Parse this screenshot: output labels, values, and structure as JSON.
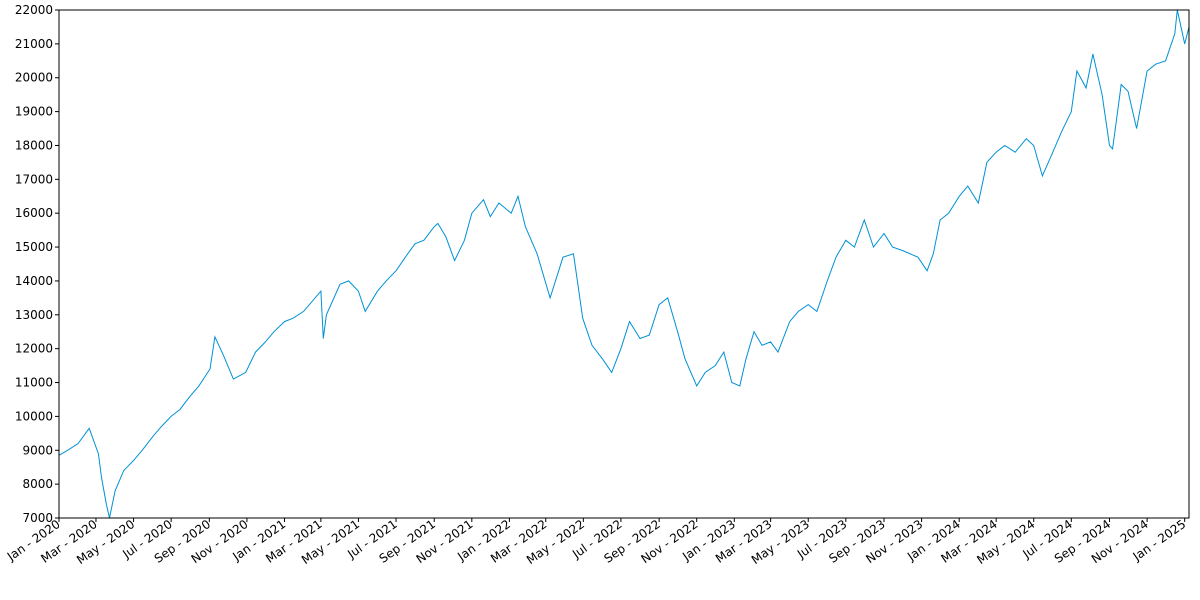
{
  "chart_data": {
    "type": "line",
    "title": "",
    "xlabel": "",
    "ylabel": "",
    "grid": false,
    "line_color": "#0091d5",
    "x_range": [
      "2020-01-01",
      "2025-01-08"
    ],
    "ylim": [
      7000,
      22000
    ],
    "y_ticks": [
      7000,
      8000,
      9000,
      10000,
      11000,
      12000,
      13000,
      14000,
      15000,
      16000,
      17000,
      18000,
      19000,
      20000,
      21000,
      22000
    ],
    "x_ticks": [
      {
        "date": "2020-01-01",
        "label": "Jan - 2020"
      },
      {
        "date": "2020-03-01",
        "label": "Mar - 2020"
      },
      {
        "date": "2020-05-01",
        "label": "May - 2020"
      },
      {
        "date": "2020-07-01",
        "label": "Jul - 2020"
      },
      {
        "date": "2020-09-01",
        "label": "Sep - 2020"
      },
      {
        "date": "2020-11-01",
        "label": "Nov - 2020"
      },
      {
        "date": "2021-01-01",
        "label": "Jan - 2021"
      },
      {
        "date": "2021-03-01",
        "label": "Mar - 2021"
      },
      {
        "date": "2021-05-01",
        "label": "May - 2021"
      },
      {
        "date": "2021-07-01",
        "label": "Jul - 2021"
      },
      {
        "date": "2021-09-01",
        "label": "Sep - 2021"
      },
      {
        "date": "2021-11-01",
        "label": "Nov - 2021"
      },
      {
        "date": "2022-01-01",
        "label": "Jan - 2022"
      },
      {
        "date": "2022-03-01",
        "label": "Mar - 2022"
      },
      {
        "date": "2022-05-01",
        "label": "May - 2022"
      },
      {
        "date": "2022-07-01",
        "label": "Jul - 2022"
      },
      {
        "date": "2022-09-01",
        "label": "Sep - 2022"
      },
      {
        "date": "2022-11-01",
        "label": "Nov - 2022"
      },
      {
        "date": "2023-01-01",
        "label": "Jan - 2023"
      },
      {
        "date": "2023-03-01",
        "label": "Mar - 2023"
      },
      {
        "date": "2023-05-01",
        "label": "May - 2023"
      },
      {
        "date": "2023-07-01",
        "label": "Jul - 2023"
      },
      {
        "date": "2023-09-01",
        "label": "Sep - 2023"
      },
      {
        "date": "2023-11-01",
        "label": "Nov - 2023"
      },
      {
        "date": "2024-01-01",
        "label": "Jan - 2024"
      },
      {
        "date": "2024-03-01",
        "label": "Mar - 2024"
      },
      {
        "date": "2024-05-01",
        "label": "May - 2024"
      },
      {
        "date": "2024-07-01",
        "label": "Jul - 2024"
      },
      {
        "date": "2024-09-01",
        "label": "Sep - 2024"
      },
      {
        "date": "2024-11-01",
        "label": "Nov - 2024"
      },
      {
        "date": "2025-01-01",
        "label": "Jan - 2025"
      }
    ],
    "series": [
      {
        "x": [
          "2020-01-01",
          "2020-01-15",
          "2020-02-01",
          "2020-02-19",
          "2020-03-05",
          "2020-03-10",
          "2020-03-18",
          "2020-03-23",
          "2020-04-01",
          "2020-04-15",
          "2020-05-01",
          "2020-05-15",
          "2020-06-01",
          "2020-06-15",
          "2020-07-01",
          "2020-07-15",
          "2020-08-01",
          "2020-08-15",
          "2020-09-02",
          "2020-09-10",
          "2020-09-24",
          "2020-10-10",
          "2020-10-30",
          "2020-11-15",
          "2020-12-01",
          "2020-12-15",
          "2021-01-01",
          "2021-01-15",
          "2021-02-01",
          "2021-02-15",
          "2021-03-01",
          "2021-03-05",
          "2021-03-10",
          "2021-04-01",
          "2021-04-15",
          "2021-05-01",
          "2021-05-12",
          "2021-06-01",
          "2021-06-15",
          "2021-07-01",
          "2021-07-20",
          "2021-08-01",
          "2021-08-15",
          "2021-09-01",
          "2021-09-07",
          "2021-09-20",
          "2021-10-04",
          "2021-10-20",
          "2021-11-01",
          "2021-11-20",
          "2021-12-01",
          "2021-12-15",
          "2022-01-04",
          "2022-01-15",
          "2022-01-27",
          "2022-02-15",
          "2022-03-08",
          "2022-03-29",
          "2022-04-15",
          "2022-04-30",
          "2022-05-15",
          "2022-06-01",
          "2022-06-16",
          "2022-07-01",
          "2022-07-15",
          "2022-08-01",
          "2022-08-16",
          "2022-09-01",
          "2022-09-15",
          "2022-10-01",
          "2022-10-13",
          "2022-11-01",
          "2022-11-15",
          "2022-12-01",
          "2022-12-15",
          "2022-12-28",
          "2023-01-10",
          "2023-01-20",
          "2023-02-02",
          "2023-02-15",
          "2023-03-01",
          "2023-03-13",
          "2023-04-01",
          "2023-04-15",
          "2023-05-01",
          "2023-05-15",
          "2023-06-01",
          "2023-06-15",
          "2023-07-01",
          "2023-07-15",
          "2023-07-31",
          "2023-08-15",
          "2023-09-01",
          "2023-09-15",
          "2023-10-01",
          "2023-10-26",
          "2023-11-10",
          "2023-11-20",
          "2023-12-01",
          "2023-12-15",
          "2024-01-01",
          "2024-01-15",
          "2024-02-01",
          "2024-02-15",
          "2024-03-01",
          "2024-03-15",
          "2024-04-01",
          "2024-04-19",
          "2024-05-01",
          "2024-05-15",
          "2024-06-01",
          "2024-06-15",
          "2024-07-01",
          "2024-07-10",
          "2024-07-25",
          "2024-08-05",
          "2024-08-20",
          "2024-09-01",
          "2024-09-06",
          "2024-09-20",
          "2024-10-01",
          "2024-10-15",
          "2024-11-01",
          "2024-11-15",
          "2024-12-01",
          "2024-12-16",
          "2024-12-20",
          "2025-01-01",
          "2025-01-08"
        ],
        "y": [
          8850,
          9000,
          9200,
          9650,
          8900,
          8200,
          7400,
          7000,
          7800,
          8400,
          8700,
          9000,
          9400,
          9700,
          10000,
          10200,
          10600,
          10900,
          11400,
          12350,
          11800,
          11100,
          11300,
          11900,
          12200,
          12500,
          12800,
          12900,
          13100,
          13400,
          13700,
          12300,
          13000,
          13900,
          14000,
          13700,
          13100,
          13700,
          14000,
          14300,
          14800,
          15100,
          15200,
          15600,
          15700,
          15300,
          14600,
          15200,
          16000,
          16400,
          15900,
          16300,
          16000,
          16500,
          15600,
          14800,
          13500,
          14700,
          14800,
          12900,
          12100,
          11700,
          11300,
          12000,
          12800,
          12300,
          12400,
          13300,
          13500,
          12500,
          11700,
          10900,
          11300,
          11500,
          11900,
          11000,
          10900,
          11700,
          12500,
          12100,
          12200,
          11900,
          12800,
          13100,
          13300,
          13100,
          14000,
          14700,
          15200,
          15000,
          15800,
          15000,
          15400,
          15000,
          14900,
          14700,
          14300,
          14800,
          15800,
          16000,
          16500,
          16800,
          16300,
          17500,
          17800,
          18000,
          17800,
          18200,
          18000,
          17100,
          17800,
          18400,
          19000,
          20200,
          19700,
          20700,
          19500,
          18000,
          17900,
          19800,
          19600,
          18500,
          20200,
          20400,
          20500,
          21300,
          22000,
          21000,
          21500
        ]
      }
    ]
  }
}
